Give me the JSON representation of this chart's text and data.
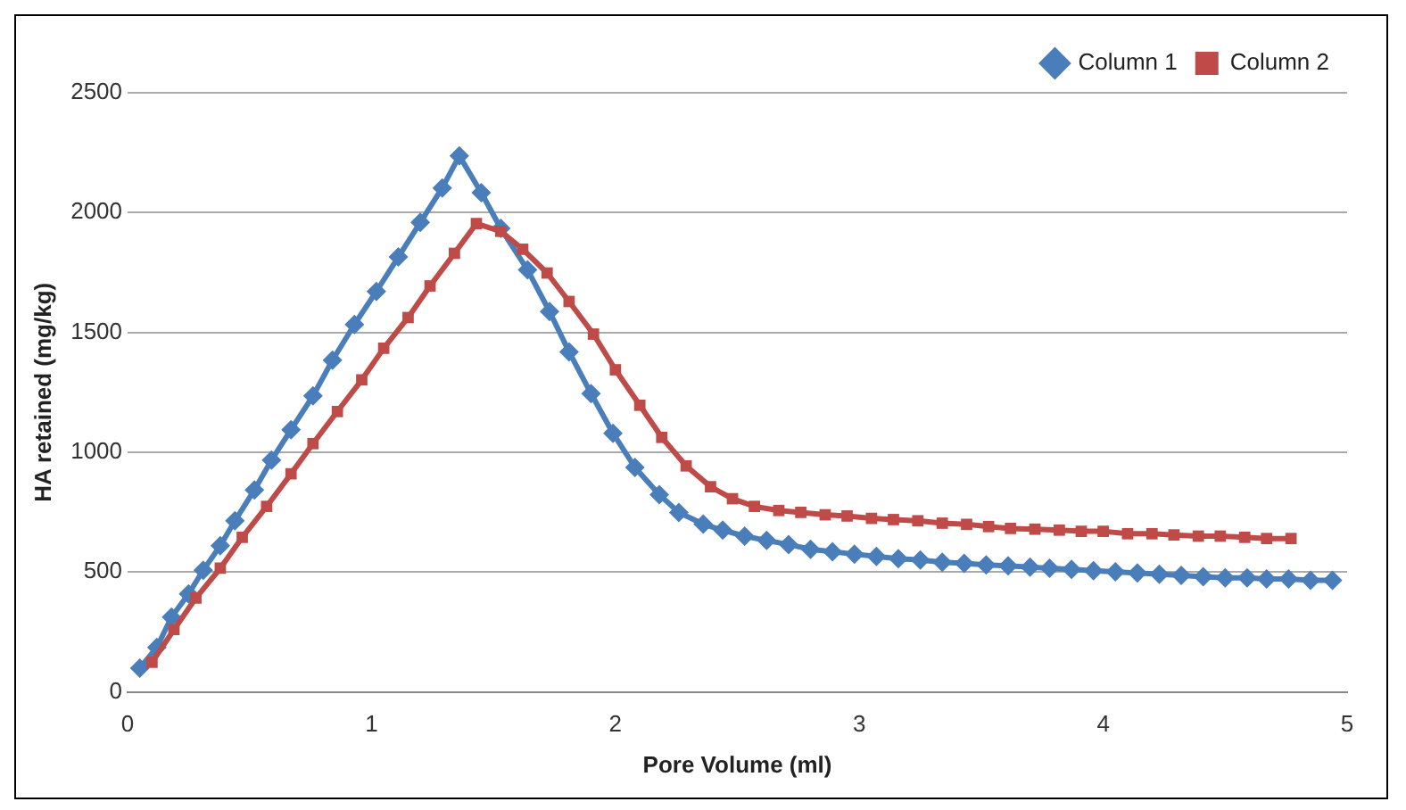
{
  "chart_data": {
    "type": "line",
    "xlabel": "Pore Volume (ml)",
    "ylabel": "HA retained (mg/kg)",
    "xlim": [
      0,
      5
    ],
    "xticks": [
      0,
      1,
      2,
      3,
      4,
      5
    ],
    "ylim": [
      0,
      2500
    ],
    "yticks": [
      0,
      500,
      1000,
      1500,
      2000,
      2500
    ],
    "grid": "y",
    "legend": "top right",
    "line_style": "solid",
    "series": [
      {
        "name": "Column 1",
        "color": "#4a7ebb",
        "marker": "diamond",
        "x": [
          0.05,
          0.12,
          0.18,
          0.25,
          0.31,
          0.38,
          0.44,
          0.52,
          0.59,
          0.67,
          0.76,
          0.84,
          0.93,
          1.02,
          1.11,
          1.2,
          1.29,
          1.36,
          1.45,
          1.53,
          1.64,
          1.73,
          1.81,
          1.9,
          1.99,
          2.08,
          2.18,
          2.26,
          2.36,
          2.44,
          2.53,
          2.62,
          2.71,
          2.8,
          2.89,
          2.98,
          3.07,
          3.16,
          3.25,
          3.34,
          3.43,
          3.52,
          3.61,
          3.7,
          3.78,
          3.87,
          3.96,
          4.05,
          4.14,
          4.23,
          4.32,
          4.41,
          4.5,
          4.59,
          4.67,
          4.76,
          4.85,
          4.94
        ],
        "values": [
          99,
          186,
          312,
          409,
          508,
          610,
          714,
          843,
          967,
          1094,
          1235,
          1384,
          1533,
          1671,
          1815,
          1959,
          2103,
          2237,
          2083,
          1934,
          1761,
          1587,
          1419,
          1245,
          1079,
          937,
          823,
          749,
          700,
          675,
          650,
          632,
          615,
          595,
          585,
          575,
          565,
          556,
          550,
          541,
          536,
          530,
          526,
          521,
          516,
          511,
          506,
          501,
          496,
          491,
          486,
          481,
          476,
          476,
          471,
          471,
          466,
          466
        ]
      },
      {
        "name": "Column 2",
        "color": "#be4b48",
        "marker": "square",
        "x": [
          0.1,
          0.19,
          0.28,
          0.38,
          0.47,
          0.57,
          0.67,
          0.76,
          0.86,
          0.96,
          1.05,
          1.15,
          1.24,
          1.34,
          1.43,
          1.53,
          1.62,
          1.72,
          1.81,
          1.91,
          2.0,
          2.1,
          2.19,
          2.29,
          2.39,
          2.48,
          2.57,
          2.67,
          2.76,
          2.86,
          2.95,
          3.05,
          3.14,
          3.24,
          3.34,
          3.44,
          3.53,
          3.62,
          3.72,
          3.82,
          3.91,
          4.0,
          4.1,
          4.2,
          4.29,
          4.39,
          4.48,
          4.58,
          4.67,
          4.77
        ],
        "values": [
          124,
          260,
          392,
          516,
          645,
          774,
          910,
          1036,
          1170,
          1302,
          1434,
          1562,
          1694,
          1830,
          1954,
          1922,
          1847,
          1748,
          1629,
          1493,
          1344,
          1196,
          1062,
          943,
          856,
          806,
          774,
          757,
          749,
          739,
          734,
          724,
          719,
          714,
          704,
          699,
          690,
          682,
          679,
          675,
          670,
          670,
          660,
          660,
          655,
          650,
          650,
          645,
          640,
          640
        ]
      }
    ]
  }
}
